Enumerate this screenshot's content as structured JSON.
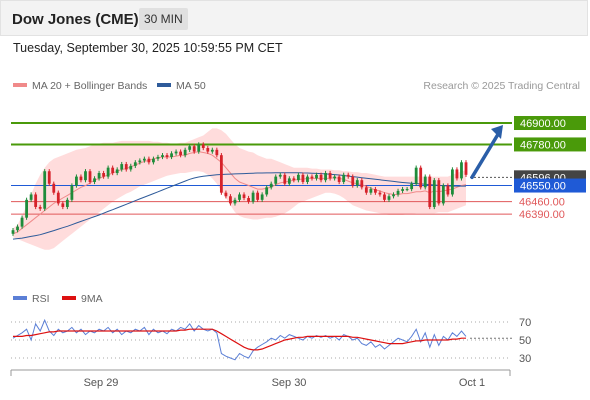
{
  "header": {
    "title": "Dow Jones (CME)",
    "timeframe": "30 MIN",
    "datetime": "Tuesday, September 30, 2025 10:59:55 PM CET"
  },
  "colors": {
    "bb_band": "#ffd6d6",
    "ma20": "#f08a8a",
    "ma50": "#2e5b9a",
    "candle_up": "#1e8c3a",
    "candle_down": "#d6222a",
    "resistance": "#4a9a0a",
    "support": "#e0585a",
    "pivot": "#1f5ad6",
    "arrow": "#2a5ea8",
    "rsi": "#5b7fd6",
    "rsi_ma": "#dd1111"
  },
  "chart_data": [
    {
      "type": "candlestick",
      "title": "Dow Jones (CME)",
      "legend": [
        {
          "name": "MA 20 + Bollinger Bands",
          "color": "#f08a8a"
        },
        {
          "name": "MA 50",
          "color": "#2e5b9a"
        }
      ],
      "legend_position": "top-left",
      "credit": "Research © 2025 Trading Central",
      "y_range": [
        46010,
        47040
      ],
      "x_ticks": [
        "Sep 29",
        "Sep 30",
        "Oct 1"
      ],
      "levels": [
        {
          "value": 46900,
          "label": "46900.00",
          "kind": "resistance"
        },
        {
          "value": 46780,
          "label": "46780.00",
          "kind": "resistance"
        },
        {
          "value": 46596,
          "label": "46596.00",
          "kind": "last"
        },
        {
          "value": 46550,
          "label": "46550.00",
          "kind": "pivot"
        },
        {
          "value": 46460,
          "label": "46460.00",
          "kind": "support"
        },
        {
          "value": 46390,
          "label": "46390.00",
          "kind": "support"
        }
      ],
      "candles_close": [
        46300,
        46320,
        46370,
        46470,
        46500,
        46430,
        46420,
        46630,
        46560,
        46510,
        46450,
        46430,
        46470,
        46550,
        46600,
        46580,
        46630,
        46570,
        46590,
        46620,
        46600,
        46650,
        46620,
        46640,
        46670,
        46640,
        46660,
        46680,
        46690,
        46700,
        46680,
        46700,
        46710,
        46720,
        46710,
        46730,
        46740,
        46720,
        46750,
        46770,
        46740,
        46780,
        46760,
        46740,
        46750,
        46720,
        46510,
        46490,
        46450,
        46470,
        46500,
        46480,
        46460,
        46510,
        46470,
        46500,
        46540,
        46560,
        46600,
        46610,
        46560,
        46590,
        46580,
        46610,
        46570,
        46600,
        46590,
        46610,
        46580,
        46620,
        46590,
        46600,
        46570,
        46610,
        46600,
        46550,
        46580,
        46540,
        46510,
        46530,
        46510,
        46500,
        46470,
        46490,
        46500,
        46520,
        46530,
        46530,
        46560,
        46650,
        46540,
        46600,
        46430,
        46580,
        46450,
        46550,
        46500,
        46640,
        46590,
        46680,
        46610
      ],
      "ma20": [
        46280,
        46290,
        46310,
        46330,
        46350,
        46370,
        46390,
        46410,
        46430,
        46450,
        46465,
        46480,
        46495,
        46510,
        46525,
        46540,
        46550,
        46565,
        46580,
        46590,
        46600,
        46610,
        46620,
        46630,
        46640,
        46645,
        46655,
        46665,
        46675,
        46685,
        46690,
        46700,
        46705,
        46710,
        46710,
        46710,
        46715,
        46720,
        46720,
        46730,
        46735,
        46740,
        46735,
        46730,
        46720,
        46700,
        46680,
        46650,
        46620,
        46590,
        46570,
        46560,
        46550,
        46540,
        46530,
        46530,
        46535,
        46540,
        46555,
        46565,
        46570,
        46575,
        46580,
        46585,
        46585,
        46590,
        46590,
        46590,
        46590,
        46590,
        46590,
        46595,
        46590,
        46585,
        46575,
        46565,
        46560,
        46555,
        46545,
        46535,
        46525,
        46520,
        46510,
        46505,
        46500,
        46500,
        46505,
        46505,
        46510,
        46515,
        46515,
        46520,
        46510,
        46520,
        46515,
        46520,
        46525,
        46530,
        46540,
        46550,
        46555
      ],
      "bb_upper": [
        46310,
        46330,
        46380,
        46440,
        46500,
        46560,
        46610,
        46650,
        46680,
        46700,
        46710,
        46720,
        46730,
        46740,
        46750,
        46755,
        46760,
        46770,
        46780,
        46785,
        46790,
        46790,
        46790,
        46795,
        46800,
        46800,
        46800,
        46800,
        46800,
        46800,
        46800,
        46795,
        46795,
        46790,
        46790,
        46785,
        46785,
        46790,
        46790,
        46800,
        46810,
        46820,
        46830,
        46850,
        46870,
        46870,
        46860,
        46840,
        46810,
        46780,
        46760,
        46750,
        46740,
        46735,
        46720,
        46710,
        46700,
        46700,
        46690,
        46680,
        46670,
        46660,
        46650,
        46650,
        46650,
        46650,
        46645,
        46645,
        46640,
        46640,
        46640,
        46635,
        46635,
        46630,
        46630,
        46625,
        46625,
        46620,
        46620,
        46615,
        46610,
        46605,
        46600,
        46600,
        46600,
        46600,
        46600,
        46600,
        46600,
        46600,
        46600,
        46600,
        46600,
        46600,
        46600,
        46600,
        46600,
        46610,
        46620,
        46630,
        46635
      ],
      "bb_lower": [
        46260,
        46250,
        46240,
        46230,
        46220,
        46210,
        46200,
        46190,
        46190,
        46200,
        46220,
        46240,
        46260,
        46280,
        46300,
        46320,
        46340,
        46360,
        46380,
        46400,
        46420,
        46440,
        46460,
        46475,
        46490,
        46505,
        46515,
        46530,
        46545,
        46555,
        46565,
        46575,
        46585,
        46595,
        46605,
        46610,
        46615,
        46620,
        46620,
        46625,
        46630,
        46630,
        46625,
        46610,
        46590,
        46560,
        46520,
        46480,
        46440,
        46400,
        46380,
        46370,
        46365,
        46360,
        46360,
        46365,
        46370,
        46370,
        46375,
        46385,
        46395,
        46410,
        46430,
        46450,
        46460,
        46470,
        46480,
        46490,
        46500,
        46510,
        46510,
        46505,
        46495,
        46480,
        46460,
        46440,
        46430,
        46420,
        46410,
        46405,
        46400,
        46395,
        46390,
        46385,
        46385,
        46385,
        46385,
        46390,
        46390,
        46395,
        46395,
        46395,
        46395,
        46395,
        46400,
        46400,
        46400,
        46410,
        46420,
        46430,
        46440
      ],
      "ma50": [
        46250,
        46253,
        46256,
        46260,
        46265,
        46270,
        46275,
        46282,
        46290,
        46298,
        46306,
        46314,
        46322,
        46331,
        46340,
        46349,
        46358,
        46367,
        46376,
        46385,
        46395,
        46405,
        46415,
        46425,
        46435,
        46445,
        46455,
        46465,
        46475,
        46485,
        46495,
        46505,
        46515,
        46525,
        46535,
        46545,
        46555,
        46565,
        46575,
        46585,
        46592,
        46598,
        46602,
        46605,
        46608,
        46610,
        46612,
        46613,
        46614,
        46615,
        46616,
        46617,
        46618,
        46619,
        46620,
        46620,
        46621,
        46621,
        46622,
        46622,
        46622,
        46622,
        46622,
        46622,
        46621,
        46620,
        46619,
        46618,
        46617,
        46615,
        46613,
        46611,
        46609,
        46606,
        46603,
        46600,
        46597,
        46594,
        46591,
        46588,
        46585,
        46582,
        46579,
        46576,
        46573,
        46570,
        46567,
        46565,
        46563,
        46561,
        46559,
        46557,
        46555,
        46553,
        46551,
        46549,
        46548,
        46547,
        46547,
        46547,
        46547
      ],
      "forecast_arrow": {
        "from": 46596,
        "to": 46900
      }
    },
    {
      "type": "line",
      "title": "",
      "legend": [
        {
          "name": "RSI",
          "color": "#5b7fd6"
        },
        {
          "name": "9MA",
          "color": "#dd1111"
        }
      ],
      "y_ticks": [
        70,
        50,
        30
      ],
      "y_range": [
        20,
        80
      ],
      "series": [
        {
          "name": "RSI",
          "values": [
            52,
            55,
            58,
            62,
            50,
            68,
            60,
            72,
            60,
            55,
            62,
            58,
            60,
            64,
            58,
            62,
            56,
            60,
            58,
            62,
            60,
            64,
            58,
            62,
            56,
            60,
            58,
            62,
            60,
            64,
            56,
            62,
            58,
            60,
            57,
            62,
            60,
            64,
            62,
            68,
            60,
            66,
            62,
            60,
            62,
            58,
            35,
            32,
            30,
            28,
            35,
            32,
            30,
            38,
            42,
            45,
            48,
            52,
            50,
            55,
            52,
            56,
            54,
            52,
            50,
            54,
            52,
            55,
            53,
            55,
            52,
            54,
            50,
            56,
            54,
            50,
            52,
            46,
            44,
            48,
            42,
            45,
            40,
            44,
            48,
            52,
            50,
            48,
            54,
            62,
            48,
            58,
            42,
            56,
            44,
            54,
            50,
            58,
            54,
            60,
            54
          ]
        },
        {
          "name": "9MA",
          "values": [
            54,
            54,
            54,
            55,
            55,
            56,
            57,
            58,
            59,
            59,
            60,
            60,
            60,
            60,
            60,
            60,
            60,
            60,
            60,
            60,
            60,
            60,
            60,
            60,
            60,
            60,
            60,
            60,
            60,
            60,
            60,
            60,
            60,
            60,
            60,
            60,
            60,
            61,
            61,
            62,
            62,
            62,
            62,
            62,
            62,
            60,
            57,
            54,
            51,
            48,
            45,
            42,
            40,
            39,
            39,
            40,
            42,
            44,
            46,
            48,
            50,
            51,
            52,
            53,
            53,
            54,
            54,
            54,
            54,
            54,
            54,
            54,
            54,
            54,
            54,
            53,
            53,
            52,
            51,
            50,
            49,
            48,
            47,
            46,
            46,
            46,
            46,
            47,
            48,
            49,
            49,
            50,
            50,
            50,
            50,
            50,
            50,
            51,
            51,
            52,
            52
          ]
        }
      ]
    }
  ]
}
